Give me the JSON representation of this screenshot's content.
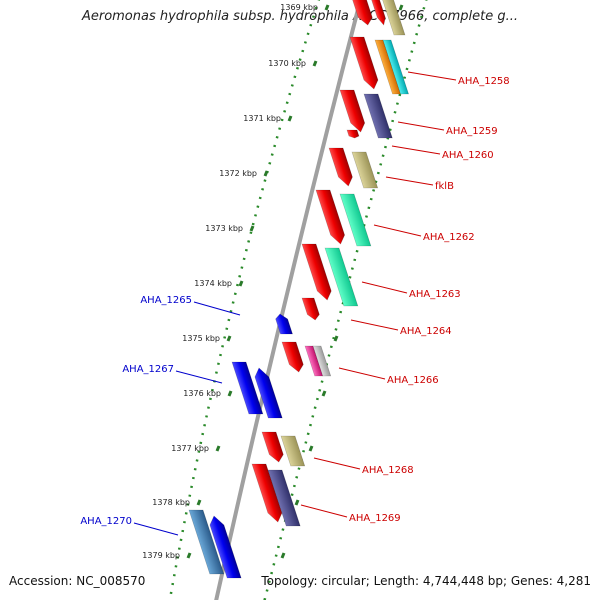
{
  "title": "Aeromonas hydrophila subsp. hydrophila ATCC 7966, complete g...",
  "accession": "Accession: NC_008570",
  "topology": "Topology: circular; Length: 4,744,448 bp; Genes: 4,281",
  "kbp_labels": [
    "1369 kbp",
    "1370 kbp",
    "1371 kbp",
    "1372 kbp",
    "1373 kbp",
    "1374 kbp",
    "1375 kbp",
    "1376 kbp",
    "1377 kbp",
    "1378 kbp",
    "1379 kbp"
  ],
  "genes_forward": [
    "AHA_1258",
    "AHA_1259",
    "AHA_1260",
    "fklB",
    "AHA_1262",
    "AHA_1263",
    "AHA_1264",
    "AHA_1266",
    "AHA_1268",
    "AHA_1269"
  ],
  "genes_reverse": [
    "AHA_1265",
    "AHA_1267",
    "AHA_1270"
  ],
  "colors": {
    "forward_label": "#cc0000",
    "reverse_label": "#0000cc",
    "forward_gene": "#ee0000",
    "reverse_gene": "#0000ee",
    "backbone": "#888888",
    "ticks": "#2a7a2a"
  }
}
